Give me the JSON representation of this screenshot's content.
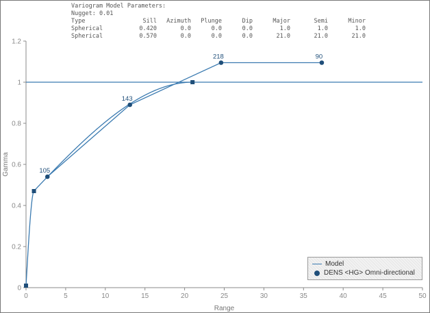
{
  "params": {
    "title": "Variogram Model Parameters:",
    "nugget": "Nugget: 0.01",
    "headers": [
      "Type",
      "Sill",
      "Azimuth",
      "Plunge",
      "Dip",
      "Major",
      "Semi",
      "Minor"
    ],
    "rows": [
      [
        "Spherical",
        "0.420",
        "0.0",
        "0.0",
        "0.0",
        "1.0",
        "1.0",
        "1.0"
      ],
      [
        "Spherical",
        "0.570",
        "0.0",
        "0.0",
        "0.0",
        "21.0",
        "21.0",
        "21.0"
      ]
    ]
  },
  "chart_data": {
    "type": "line",
    "xlabel": "Range",
    "ylabel": "Gamma",
    "xlim": [
      0,
      50
    ],
    "ylim": [
      0,
      1.2
    ],
    "x_ticks": [
      "0",
      "5",
      "10",
      "15",
      "20",
      "25",
      "30",
      "35",
      "40",
      "45",
      "50"
    ],
    "y_ticks": [
      "0",
      "0.2",
      "0.4",
      "0.6",
      "0.8",
      "1",
      "1.2"
    ],
    "grid": false,
    "legend_position": "bottom-right",
    "sill_line": 1.0,
    "series": [
      {
        "name": "Model",
        "kind": "line",
        "color": "#3a7ab0",
        "model": {
          "nugget": 0.01,
          "structures": [
            {
              "type": "spherical",
              "sill": 0.42,
              "range": 1.0
            },
            {
              "type": "spherical",
              "sill": 0.57,
              "range": 21.0
            }
          ]
        }
      },
      {
        "name": "DENS <HG> Omni-directional",
        "kind": "points",
        "color": "#1f4e79",
        "x": [
          2.7,
          13.1,
          24.6,
          37.3
        ],
        "y": [
          0.54,
          0.89,
          1.095,
          1.095
        ],
        "labels": [
          "105",
          "143",
          "218",
          "90"
        ]
      }
    ],
    "model_markers": {
      "x": [
        0,
        1.0,
        21.0
      ],
      "y": [
        0.01,
        0.47,
        1.0
      ]
    }
  }
}
